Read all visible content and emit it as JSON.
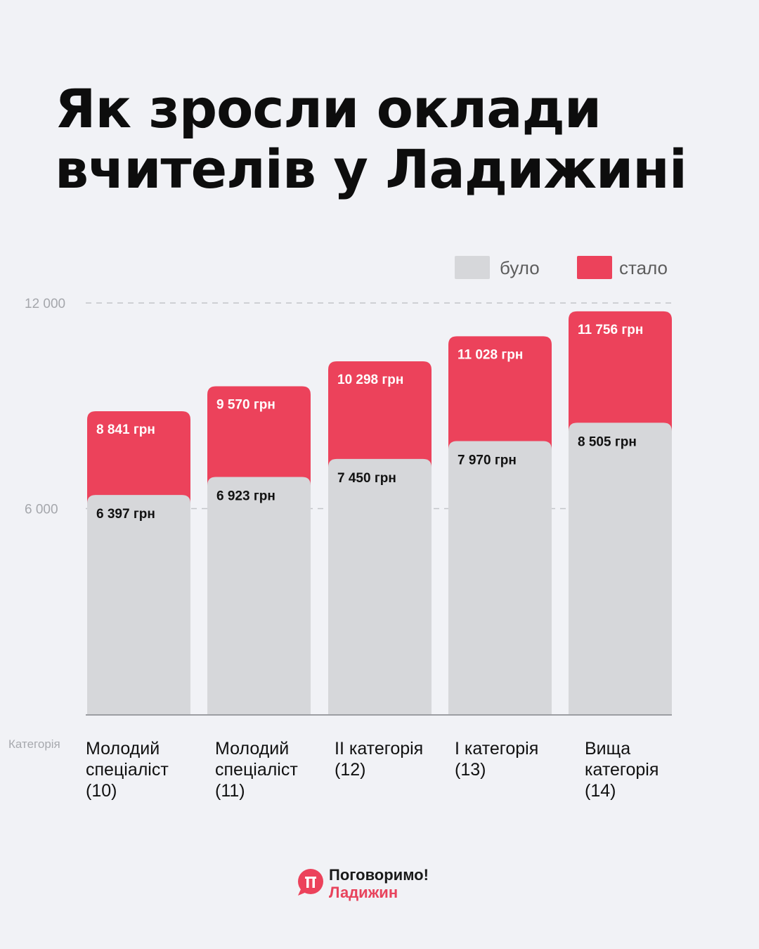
{
  "title": "Як зросли оклади вчителів у Ладижині",
  "legend": {
    "before": "було",
    "after": "стало"
  },
  "colors": {
    "before": "#d6d7da",
    "after": "#ec425b",
    "before_text": "#111111",
    "after_text": "#ffffff"
  },
  "axis": {
    "category_label": "Категорія"
  },
  "chart_data": {
    "type": "bar",
    "stacked_overlay": true,
    "title": "Як зросли оклади вчителів у Ладижині",
    "xlabel": "Категорія",
    "ylabel": "",
    "ylim": [
      0,
      12000
    ],
    "yticks": [
      {
        "value": 6000,
        "label": "6 000"
      },
      {
        "value": 12000,
        "label": "12 000"
      }
    ],
    "grid": "dashed at ticks",
    "legend_position": "top-right",
    "categories": [
      [
        "Молодий",
        "спеціаліст",
        "(10)"
      ],
      [
        "Молодий",
        "спеціаліст",
        "(11)"
      ],
      [
        "II категорія",
        "(12)"
      ],
      [
        "I категорія",
        "(13)"
      ],
      [
        "Вища",
        "категорія",
        "(14)"
      ]
    ],
    "series": [
      {
        "name": "було",
        "values": [
          6397,
          6923,
          7450,
          7970,
          8505
        ],
        "labels": [
          "6 397 грн",
          "6 923 грн",
          "7 450 грн",
          "7 970 грн",
          "8 505 грн"
        ]
      },
      {
        "name": "стало",
        "values": [
          8841,
          9570,
          10298,
          11028,
          11756
        ],
        "labels": [
          "8 841 грн",
          "9 570 грн",
          "10 298 грн",
          "11 028 грн",
          "11 756 грн"
        ]
      }
    ]
  },
  "logo": {
    "line1": "Поговоримо!",
    "line2": "Ладижин",
    "mark": "п"
  }
}
